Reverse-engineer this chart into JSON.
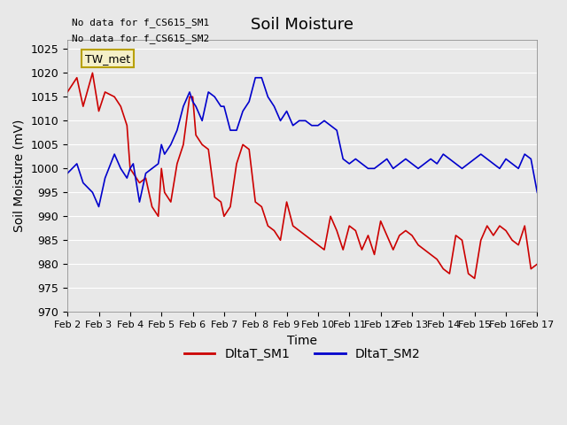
{
  "title": "Soil Moisture",
  "xlabel": "Time",
  "ylabel": "Soil Moisture (mV)",
  "ylim": [
    970,
    1027
  ],
  "yticks": [
    970,
    975,
    980,
    985,
    990,
    995,
    1000,
    1005,
    1010,
    1015,
    1020,
    1025
  ],
  "background_color": "#e8e8e8",
  "plot_bg_color": "#e8e8e8",
  "text_annotations": [
    "No data for f_CS615_SM1",
    "No data for f_CS615_SM2"
  ],
  "legend_box_label": "TW_met",
  "legend_box_color": "#f5f0c8",
  "legend_box_border": "#b8a000",
  "line1_color": "#cc0000",
  "line2_color": "#0000cc",
  "line1_label": "DltaT_SM1",
  "line2_label": "DltaT_SM2",
  "x_labels": [
    "Feb 2",
    "Feb 3",
    "Feb 4",
    "Feb 5",
    "Feb 6",
    "Feb 7",
    "Feb 8",
    "Feb 9",
    "Feb 10",
    "Feb 11",
    "Feb 12",
    "Feb 13",
    "Feb 14",
    "Feb 15",
    "Feb 16",
    "Feb 17"
  ],
  "sm1_x": [
    0,
    0.3,
    0.5,
    0.8,
    1.0,
    1.2,
    1.5,
    1.7,
    1.9,
    2.0,
    2.1,
    2.3,
    2.5,
    2.7,
    2.9,
    3.0,
    3.1,
    3.3,
    3.5,
    3.7,
    3.9,
    4.0,
    4.1,
    4.3,
    4.5,
    4.7,
    4.9,
    5.0,
    5.2,
    5.4,
    5.6,
    5.8,
    6.0,
    6.2,
    6.4,
    6.6,
    6.8,
    7.0,
    7.2,
    7.4,
    7.6,
    7.8,
    8.0,
    8.2,
    8.4,
    8.6,
    8.8,
    9.0,
    9.2,
    9.4,
    9.6,
    9.8,
    10.0,
    10.2,
    10.4,
    10.6,
    10.8,
    11.0,
    11.2,
    11.4,
    11.6,
    11.8,
    12.0,
    12.2,
    12.4,
    12.6,
    12.8,
    13.0,
    13.2,
    13.4,
    13.6,
    13.8,
    14.0,
    14.2,
    14.4,
    14.6,
    14.8,
    15.0
  ],
  "sm1_y": [
    1016,
    1019,
    1013,
    1020,
    1012,
    1016,
    1015,
    1013,
    1009,
    1000,
    999,
    997,
    998,
    992,
    990,
    1000,
    995,
    993,
    1001,
    1005,
    1015,
    1015,
    1007,
    1005,
    1004,
    994,
    993,
    990,
    992,
    1001,
    1005,
    1004,
    993,
    992,
    988,
    987,
    985,
    993,
    988,
    987,
    986,
    985,
    984,
    983,
    990,
    987,
    983,
    988,
    987,
    983,
    986,
    982,
    989,
    986,
    983,
    986,
    987,
    986,
    984,
    983,
    982,
    981,
    979,
    978,
    986,
    985,
    978,
    977,
    985,
    988,
    986,
    988,
    987,
    985,
    984,
    988,
    979,
    980
  ],
  "sm2_x": [
    0,
    0.3,
    0.5,
    0.8,
    1.0,
    1.2,
    1.5,
    1.7,
    1.9,
    2.0,
    2.1,
    2.3,
    2.5,
    2.7,
    2.9,
    3.0,
    3.1,
    3.3,
    3.5,
    3.7,
    3.9,
    4.0,
    4.1,
    4.3,
    4.5,
    4.7,
    4.9,
    5.0,
    5.2,
    5.4,
    5.6,
    5.8,
    6.0,
    6.2,
    6.4,
    6.6,
    6.8,
    7.0,
    7.2,
    7.4,
    7.6,
    7.8,
    8.0,
    8.2,
    8.4,
    8.6,
    8.8,
    9.0,
    9.2,
    9.4,
    9.6,
    9.8,
    10.0,
    10.2,
    10.4,
    10.6,
    10.8,
    11.0,
    11.2,
    11.4,
    11.6,
    11.8,
    12.0,
    12.2,
    12.4,
    12.6,
    12.8,
    13.0,
    13.2,
    13.4,
    13.6,
    13.8,
    14.0,
    14.2,
    14.4,
    14.6,
    14.8,
    15.0
  ],
  "sm2_y": [
    999,
    1001,
    997,
    995,
    992,
    998,
    1003,
    1000,
    998,
    1000,
    1001,
    993,
    999,
    1000,
    1001,
    1005,
    1003,
    1005,
    1008,
    1013,
    1016,
    1014,
    1013,
    1010,
    1016,
    1015,
    1013,
    1013,
    1008,
    1008,
    1012,
    1014,
    1019,
    1019,
    1015,
    1013,
    1010,
    1012,
    1009,
    1010,
    1010,
    1009,
    1009,
    1010,
    1009,
    1008,
    1002,
    1001,
    1002,
    1001,
    1000,
    1000,
    1001,
    1002,
    1000,
    1001,
    1002,
    1001,
    1000,
    1001,
    1002,
    1001,
    1003,
    1002,
    1001,
    1000,
    1001,
    1002,
    1003,
    1002,
    1001,
    1000,
    1002,
    1001,
    1000,
    1003,
    1002,
    995
  ]
}
